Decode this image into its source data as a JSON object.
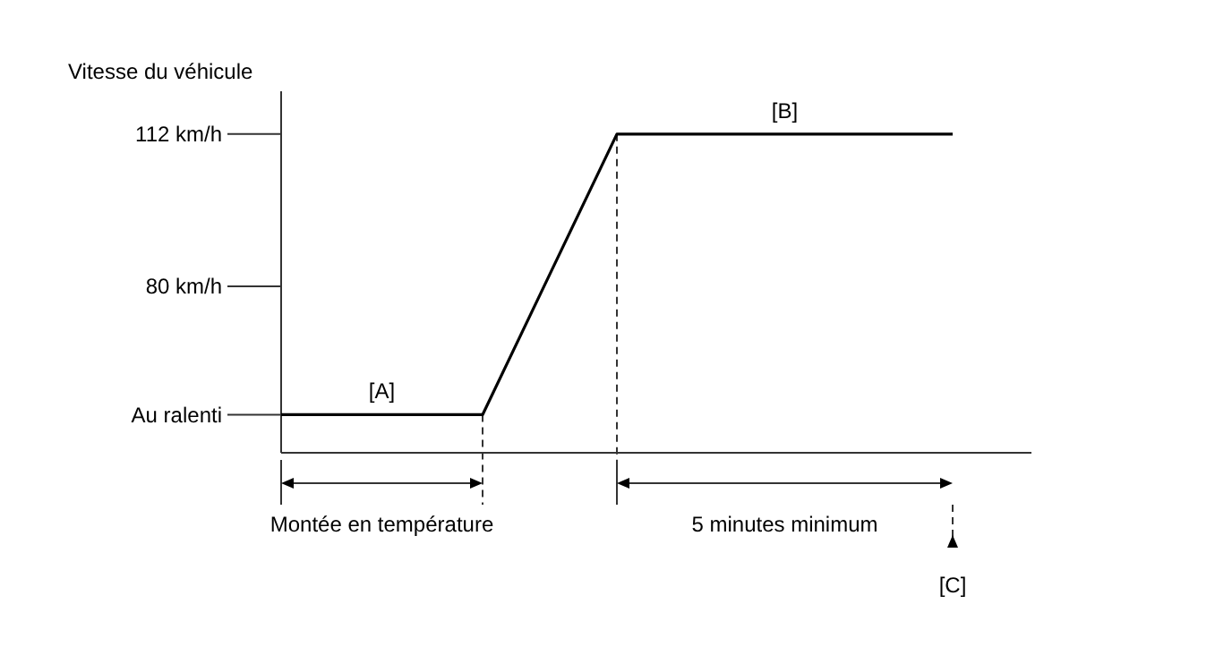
{
  "chart_data": {
    "type": "line",
    "ylabel": "Vitesse du véhicule",
    "categories": [
      null,
      null,
      null,
      null,
      null,
      null,
      null,
      null,
      null,
      null,
      null
    ],
    "series": [
      {
        "color": "#000000",
        "values": [
          53,
          53,
          53,
          53,
          82.5,
          112,
          112,
          112,
          112,
          112,
          112
        ]
      }
    ],
    "ylim": [
      45,
      121
    ],
    "yticks": [
      {
        "value": 112,
        "label": "112 km/h"
      },
      {
        "value": 80,
        "label": "80 km/h"
      },
      {
        "value": 53,
        "label": "Au ralenti"
      }
    ],
    "tick_labels": "y",
    "grid": false,
    "marker": "none",
    "line_style": "solid",
    "annotations": [
      {
        "text": "[A]",
        "y": 53
      },
      {
        "text": "[B]",
        "y": 112
      },
      "Montée en température",
      "5 minutes minimum",
      "[C]"
    ]
  }
}
